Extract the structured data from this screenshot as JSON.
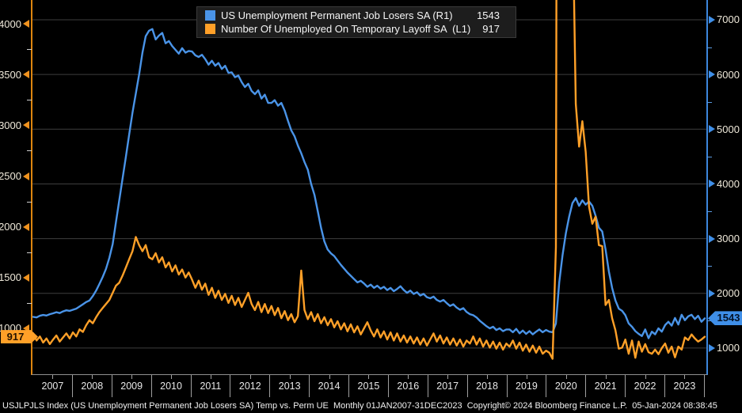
{
  "colors": {
    "background": "#000000",
    "grid": "#3e3e3e",
    "blue_series": "#4a94e8",
    "orange_series": "#ffa028",
    "left_axis_line": "#dd850f",
    "right_axis_line": "#3c86dc",
    "axis_label_text": "#efe9da",
    "year_label_text": "#e8e8e8",
    "legend_background": "#1d1d1d",
    "left_tag_background": "#ffa028",
    "right_tag_background": "#3f8fe8"
  },
  "legend": {
    "items": [
      {
        "label": "US Unemployment Permanent Job Losers SA (R1)",
        "value": "1543",
        "color": "#4a94e8"
      },
      {
        "label": "Number Of Unemployed On Temporary Layoff SA  (L1)",
        "value": "917",
        "color": "#ffa028"
      }
    ]
  },
  "tags": {
    "left_value": "917",
    "right_value": "1543"
  },
  "axes": {
    "left": {
      "ticks": [
        4000,
        3500,
        3000,
        2500,
        2000,
        1500,
        1000
      ],
      "minor_ticks": [
        3750,
        3250,
        2750,
        2250,
        1750,
        1250
      ]
    },
    "right": {
      "ticks": [
        7000,
        6000,
        5000,
        4000,
        3000,
        2000,
        1000
      ],
      "minor_ticks": [
        6500,
        5500,
        4500,
        3500,
        2500,
        1500
      ]
    },
    "x": {
      "years": [
        "2007",
        "2008",
        "2009",
        "2010",
        "2011",
        "2012",
        "2013",
        "2014",
        "2015",
        "2016",
        "2017",
        "2018",
        "2019",
        "2020",
        "2021",
        "2022",
        "2023"
      ]
    }
  },
  "footer": {
    "text": "USJLPJLS Index (US Unemployment Permanent Job Losers SA) Temp vs. Perm UE  Monthly 01JAN2007-31DEC2023  Copyright© 2024 Bloomberg Finance L.P.  05-Jan-2024 08:38:45"
  },
  "chart_data": {
    "type": "line",
    "title": "Temp vs. Perm UE",
    "frequency": "monthly",
    "x_start": "2007-01",
    "x_end": "2023-12",
    "grid": "horizontal",
    "legend_position": "top",
    "left_axis": {
      "series": "Number Of Unemployed On Temporary Layoff SA",
      "range": [
        548,
        4234
      ],
      "ticks": [
        1000,
        1500,
        2000,
        2500,
        3000,
        3500,
        4000
      ]
    },
    "right_axis": {
      "series": "US Unemployment Permanent Job Losers SA",
      "range": [
        522,
        7361
      ],
      "ticks": [
        1000,
        2000,
        3000,
        4000,
        5000,
        6000,
        7000
      ]
    },
    "series": [
      {
        "name": "US Unemployment Permanent Job Losers SA",
        "axis": "R1",
        "color": "#4a94e8",
        "last_value": 1543,
        "values": [
          1570,
          1560,
          1590,
          1605,
          1595,
          1620,
          1635,
          1655,
          1640,
          1670,
          1690,
          1680,
          1700,
          1720,
          1760,
          1800,
          1840,
          1870,
          1950,
          2050,
          2170,
          2300,
          2450,
          2650,
          2900,
          3300,
          3700,
          4100,
          4500,
          4900,
          5300,
          5650,
          6000,
          6400,
          6700,
          6800,
          6830,
          6640,
          6710,
          6760,
          6570,
          6610,
          6520,
          6450,
          6380,
          6480,
          6400,
          6430,
          6420,
          6350,
          6320,
          6360,
          6280,
          6180,
          6250,
          6160,
          6210,
          6100,
          6160,
          6030,
          6040,
          5950,
          5980,
          5860,
          5770,
          5830,
          5700,
          5640,
          5710,
          5560,
          5630,
          5480,
          5480,
          5530,
          5430,
          5480,
          5340,
          5150,
          4980,
          4870,
          4700,
          4560,
          4400,
          4260,
          4000,
          3800,
          3500,
          3200,
          2950,
          2800,
          2730,
          2680,
          2600,
          2520,
          2450,
          2380,
          2320,
          2260,
          2200,
          2230,
          2180,
          2120,
          2160,
          2100,
          2140,
          2085,
          2120,
          2060,
          2100,
          2040,
          2080,
          2130,
          2060,
          2010,
          2050,
          1990,
          2020,
          1960,
          1990,
          1930,
          1910,
          1940,
          1880,
          1850,
          1880,
          1820,
          1770,
          1800,
          1740,
          1700,
          1730,
          1660,
          1620,
          1600,
          1560,
          1500,
          1450,
          1400,
          1360,
          1390,
          1330,
          1360,
          1310,
          1340,
          1340,
          1290,
          1350,
          1270,
          1320,
          1260,
          1310,
          1250,
          1300,
          1340,
          1290,
          1330,
          1300,
          1290,
          1450,
          2200,
          2700,
          3100,
          3400,
          3650,
          3740,
          3600,
          3700,
          3620,
          3680,
          3600,
          3420,
          3200,
          3130,
          2800,
          2400,
          2100,
          1870,
          1720,
          1680,
          1600,
          1450,
          1390,
          1310,
          1260,
          1220,
          1340,
          1180,
          1300,
          1250,
          1360,
          1300,
          1420,
          1480,
          1410,
          1550,
          1430,
          1610,
          1510,
          1580,
          1610,
          1530,
          1590,
          1480,
          1543
        ]
      },
      {
        "name": "Number Of Unemployed On Temporary Layoff SA",
        "axis": "L1",
        "color": "#ffa028",
        "last_value": 917,
        "values": [
          950,
          880,
          920,
          860,
          900,
          845,
          890,
          930,
          870,
          910,
          950,
          900,
          960,
          920,
          990,
          965,
          1030,
          1080,
          1050,
          1110,
          1160,
          1200,
          1240,
          1280,
          1350,
          1420,
          1450,
          1520,
          1600,
          1680,
          1760,
          1900,
          1820,
          1760,
          1820,
          1700,
          1680,
          1740,
          1650,
          1700,
          1600,
          1650,
          1560,
          1620,
          1530,
          1580,
          1500,
          1550,
          1480,
          1400,
          1470,
          1380,
          1440,
          1330,
          1400,
          1300,
          1370,
          1280,
          1340,
          1250,
          1320,
          1230,
          1300,
          1210,
          1280,
          1350,
          1240,
          1180,
          1260,
          1160,
          1240,
          1150,
          1220,
          1130,
          1200,
          1100,
          1170,
          1080,
          1140,
          1060,
          1120,
          1570,
          1180,
          1090,
          1160,
          1070,
          1140,
          1050,
          1110,
          1030,
          1090,
          1010,
          1070,
          990,
          1050,
          970,
          1040,
          960,
          1020,
          940,
          1000,
          1060,
          980,
          920,
          990,
          910,
          970,
          890,
          960,
          880,
          950,
          870,
          930,
          860,
          920,
          850,
          910,
          840,
          900,
          830,
          890,
          950,
          870,
          930,
          850,
          910,
          840,
          900,
          830,
          890,
          820,
          880,
          850,
          920,
          840,
          900,
          820,
          880,
          810,
          870,
          800,
          860,
          790,
          850,
          820,
          880,
          800,
          860,
          780,
          840,
          770,
          830,
          760,
          820,
          750,
          780,
          760,
          700,
          1800,
          18000,
          15300,
          10600,
          8000,
          5200,
          3210,
          2790,
          3040,
          2740,
          2200,
          2030,
          2100,
          1820,
          1810,
          1230,
          1280,
          1100,
          980,
          800,
          810,
          890,
          750,
          880,
          710,
          870,
          770,
          845,
          765,
          750,
          790,
          745,
          805,
          850,
          760,
          820,
          715,
          820,
          790,
          910,
          885,
          940,
          900,
          870,
          890,
          917
        ]
      }
    ]
  }
}
